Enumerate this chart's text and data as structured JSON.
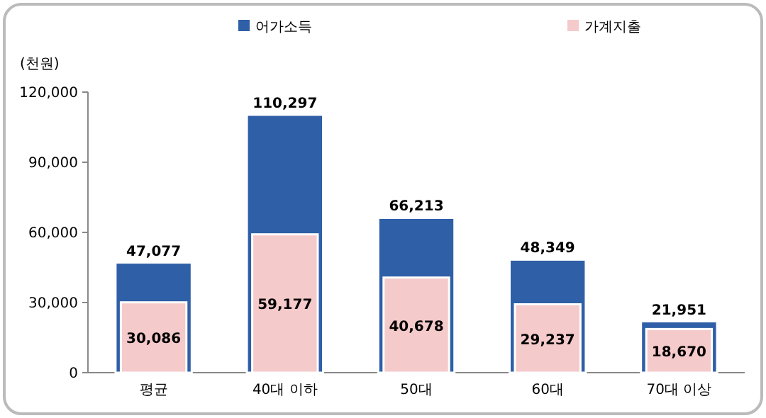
{
  "chart_data": {
    "type": "bar",
    "ylabel": "(천원)",
    "categories": [
      "평균",
      "40대 이하",
      "50대",
      "60대",
      "70대 이상"
    ],
    "series": [
      {
        "name": "어가소득",
        "color": "#2f5fa6",
        "values": [
          47077,
          110297,
          66213,
          48349,
          21951
        ],
        "value_labels": [
          "47,077",
          "110,297",
          "66,213",
          "48,349",
          "21,951"
        ]
      },
      {
        "name": "가계지출",
        "color": "#f5caca",
        "values": [
          30086,
          59177,
          40678,
          29237,
          18670
        ],
        "value_labels": [
          "30,086",
          "59,177",
          "40,678",
          "29,237",
          "18,670"
        ]
      }
    ],
    "ylim": [
      0,
      120000
    ],
    "yticks": [
      {
        "value": 0,
        "label": "0"
      },
      {
        "value": 30000,
        "label": "30,000"
      },
      {
        "value": 60000,
        "label": "60,000"
      },
      {
        "value": 90000,
        "label": "90,000"
      },
      {
        "value": 120000,
        "label": "120,000"
      }
    ],
    "legend": "top"
  }
}
